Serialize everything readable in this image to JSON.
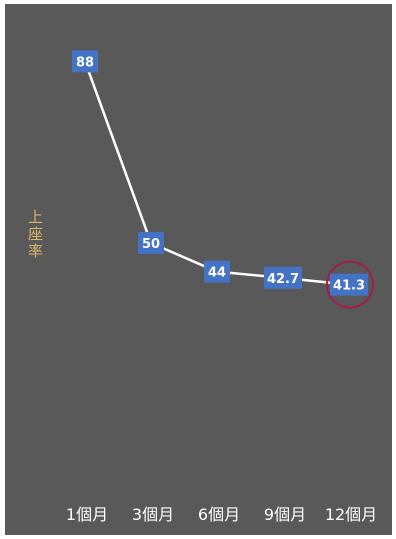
{
  "chart_data": {
    "type": "line",
    "categories": [
      "1個月",
      "3個月",
      "6個月",
      "9個月",
      "12個月"
    ],
    "values": [
      88,
      50,
      44,
      42.7,
      41.3
    ],
    "data_labels": [
      "88",
      "50",
      "44",
      "42.7",
      "41.3"
    ],
    "ylabel": "上座率",
    "title": "",
    "xlabel": "",
    "ylim": [
      0,
      100
    ],
    "grid": false,
    "legend": "none",
    "highlight_index": 4,
    "colors": {
      "background": "#595959",
      "line": "#ffffff",
      "label_fill": "#4472c4",
      "drop_line": "#a6a6a6",
      "highlight_ring": "#a0204a",
      "ylabel": "#d9b566"
    }
  }
}
